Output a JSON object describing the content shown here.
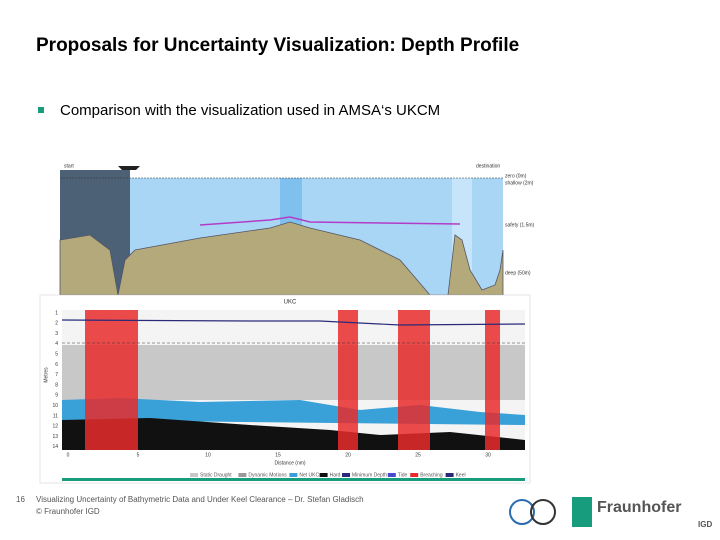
{
  "header": {
    "title": "Proposals for Uncertainty Visualization: Depth Profile"
  },
  "bullet": "Comparison with the visualization used in AMSA‘s UKCM",
  "profile": {
    "start": "start",
    "destination": "destination",
    "levels": [
      "zero (0m)",
      "shallow (2m)",
      "safety (1.5m)",
      "deep (50m)"
    ]
  },
  "ukc": {
    "title": "UKC",
    "y_label": "Metres",
    "x_label": "Distance (nm)",
    "yticks": [
      "1",
      "2",
      "3",
      "4",
      "5",
      "6",
      "7",
      "8",
      "9",
      "10",
      "11",
      "12",
      "13",
      "14"
    ],
    "xticks": [
      "0",
      "5",
      "10",
      "15",
      "20",
      "25",
      "30"
    ],
    "legend": [
      "Static Draught",
      "Dynamic Motions",
      "Net UKC",
      "Hard",
      "Minimum Depth",
      "Tide",
      "Breaching",
      "Keel"
    ]
  },
  "footer": {
    "page": "16",
    "line1": "Visualizing Uncertainty of Bathymetric Data and Under Keel Clearance – Dr. Stefan Gladisch",
    "line2": "© Fraunhofer IGD",
    "logo": "Fraunhofer",
    "logo_sub": "IGD"
  }
}
